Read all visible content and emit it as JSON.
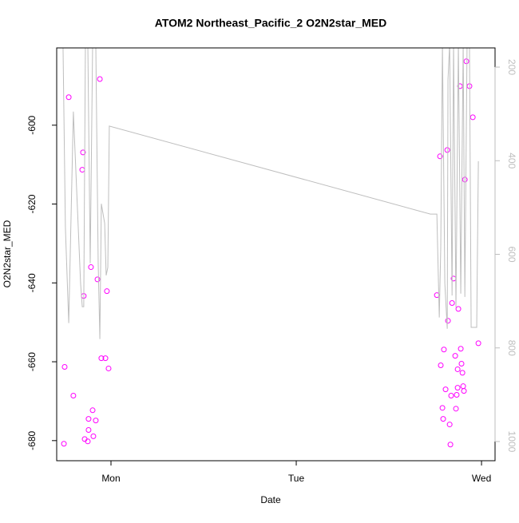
{
  "chart_data": {
    "type": "line",
    "title": "ATOM2 Northeast_Pacific_2 O2N2star_MED",
    "xlabel": "Date",
    "ylabel": "O2N2star_MED",
    "xlim": [
      -0.293,
      2.073
    ],
    "xticks": [
      {
        "value": 0,
        "label": "Mon"
      },
      {
        "value": 1,
        "label": "Tue"
      },
      {
        "value": 2,
        "label": "Wed"
      }
    ],
    "ylim": [
      -685.1,
      -580.4
    ],
    "yticks": [
      -680,
      -660,
      -640,
      -620,
      -600
    ],
    "y2lim": [
      1041,
      159
    ],
    "y2ticks": [
      200,
      400,
      600,
      800,
      1000
    ],
    "y2color": "#bebebe",
    "series": [
      {
        "type": "scatter",
        "color": "#ff00ff",
        "x": [
          -0.254,
          -0.25,
          -0.228,
          -0.203,
          -0.155,
          -0.151,
          -0.147,
          -0.142,
          -0.125,
          -0.121,
          -0.121,
          -0.108,
          -0.099,
          -0.095,
          -0.082,
          -0.073,
          -0.06,
          -0.052,
          -0.03,
          -0.022,
          -0.013,
          1.759,
          1.776,
          1.78,
          1.789,
          1.793,
          1.797,
          1.806,
          1.815,
          1.819,
          1.828,
          1.832,
          1.836,
          1.841,
          1.849,
          1.858,
          1.862,
          1.866,
          1.871,
          1.871,
          1.875,
          1.884,
          1.888,
          1.892,
          1.897,
          1.901,
          1.905,
          1.91,
          1.918,
          1.935,
          1.953,
          1.983
        ],
        "values": [
          -680.8,
          -661.3,
          -592.9,
          -668.6,
          -611.3,
          -606.9,
          -643.3,
          -679.6,
          -680.2,
          -677.3,
          -674.5,
          -636.0,
          -672.3,
          -678.9,
          -674.9,
          -639.1,
          -588.3,
          -659.1,
          -659.1,
          -642.1,
          -661.7,
          -643.1,
          -607.9,
          -660.9,
          -671.7,
          -674.5,
          -656.9,
          -667.0,
          -606.3,
          -649.6,
          -675.9,
          -681.0,
          -668.6,
          -645.1,
          -638.9,
          -658.5,
          -671.9,
          -668.4,
          -661.9,
          -666.6,
          -646.6,
          -590.1,
          -656.7,
          -660.5,
          -662.8,
          -666.2,
          -667.4,
          -613.8,
          -583.8,
          -590.1,
          -598.0,
          -655.3
        ]
      },
      {
        "type": "line",
        "axis": "y2",
        "color": "#bebebe",
        "x": [
          -0.259,
          -0.246,
          -0.228,
          -0.203,
          -0.164,
          -0.155,
          -0.147,
          -0.138,
          -0.125,
          -0.112,
          -0.099,
          -0.082,
          -0.069,
          -0.06,
          -0.052,
          -0.034,
          -0.026,
          -0.017,
          -0.009,
          1.724,
          1.759,
          1.772,
          1.78,
          1.789,
          1.802,
          1.815,
          1.819,
          1.828,
          1.841,
          1.849,
          1.862,
          1.875,
          1.888,
          1.901,
          1.91,
          1.922,
          1.935,
          1.944,
          1.974,
          1.983
        ],
        "values": [
          150,
          543,
          747,
          295,
          662,
          712,
          712,
          150,
          150,
          619,
          150,
          150,
          619,
          781,
          492,
          534,
          645,
          628,
          326,
          514,
          514,
          735,
          585,
          150,
          662,
          759,
          227,
          150,
          688,
          150,
          713,
          150,
          684,
          150,
          691,
          150,
          150,
          756,
          756,
          401
        ]
      }
    ]
  }
}
